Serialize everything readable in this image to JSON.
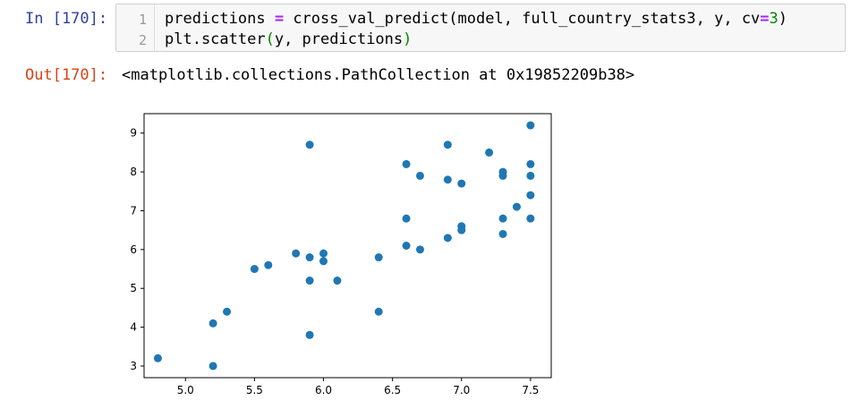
{
  "input_prompt": "In [170]:",
  "output_prompt": "Out[170]:",
  "code": {
    "line_numbers": [
      "1",
      "2"
    ],
    "line1": {
      "a": "predictions ",
      "op": "=",
      "b": " cross_val_predict(model, full_country_stats3, y, cv",
      "op2": "=",
      "num": "3",
      "c": ")"
    },
    "line2": {
      "a": "plt.scatter",
      "p1": "(",
      "b": "y, predictions",
      "p2": ")"
    }
  },
  "output_text": "<matplotlib.collections.PathCollection at 0x19852209b38>",
  "colors": {
    "marker": "#1f77b4",
    "in_prompt": "#303F9F",
    "out_prompt": "#D84315"
  },
  "chart_data": {
    "type": "scatter",
    "title": "",
    "xlabel": "",
    "ylabel": "",
    "xlim": [
      4.7,
      7.65
    ],
    "ylim": [
      2.7,
      9.5
    ],
    "xticks": [
      "5.0",
      "5.5",
      "6.0",
      "6.5",
      "7.0",
      "7.5"
    ],
    "yticks": [
      "3",
      "4",
      "5",
      "6",
      "7",
      "8",
      "9"
    ],
    "grid": false,
    "points": [
      [
        4.8,
        3.2
      ],
      [
        5.2,
        3.0
      ],
      [
        5.2,
        4.1
      ],
      [
        5.3,
        4.4
      ],
      [
        5.5,
        5.5
      ],
      [
        5.6,
        5.6
      ],
      [
        5.8,
        5.9
      ],
      [
        5.9,
        5.8
      ],
      [
        5.9,
        5.2
      ],
      [
        5.9,
        3.8
      ],
      [
        5.9,
        8.7
      ],
      [
        6.0,
        5.7
      ],
      [
        6.0,
        5.9
      ],
      [
        6.1,
        5.2
      ],
      [
        6.4,
        5.8
      ],
      [
        6.4,
        4.4
      ],
      [
        6.6,
        8.2
      ],
      [
        6.6,
        6.8
      ],
      [
        6.6,
        6.1
      ],
      [
        6.7,
        7.9
      ],
      [
        6.7,
        6.0
      ],
      [
        6.9,
        8.7
      ],
      [
        6.9,
        7.8
      ],
      [
        6.9,
        6.3
      ],
      [
        7.0,
        7.7
      ],
      [
        7.0,
        6.6
      ],
      [
        7.0,
        6.5
      ],
      [
        7.2,
        8.5
      ],
      [
        7.3,
        8.0
      ],
      [
        7.3,
        7.9
      ],
      [
        7.3,
        6.8
      ],
      [
        7.3,
        6.4
      ],
      [
        7.4,
        7.1
      ],
      [
        7.5,
        9.2
      ],
      [
        7.5,
        8.2
      ],
      [
        7.5,
        7.9
      ],
      [
        7.5,
        7.4
      ],
      [
        7.5,
        6.8
      ]
    ]
  }
}
